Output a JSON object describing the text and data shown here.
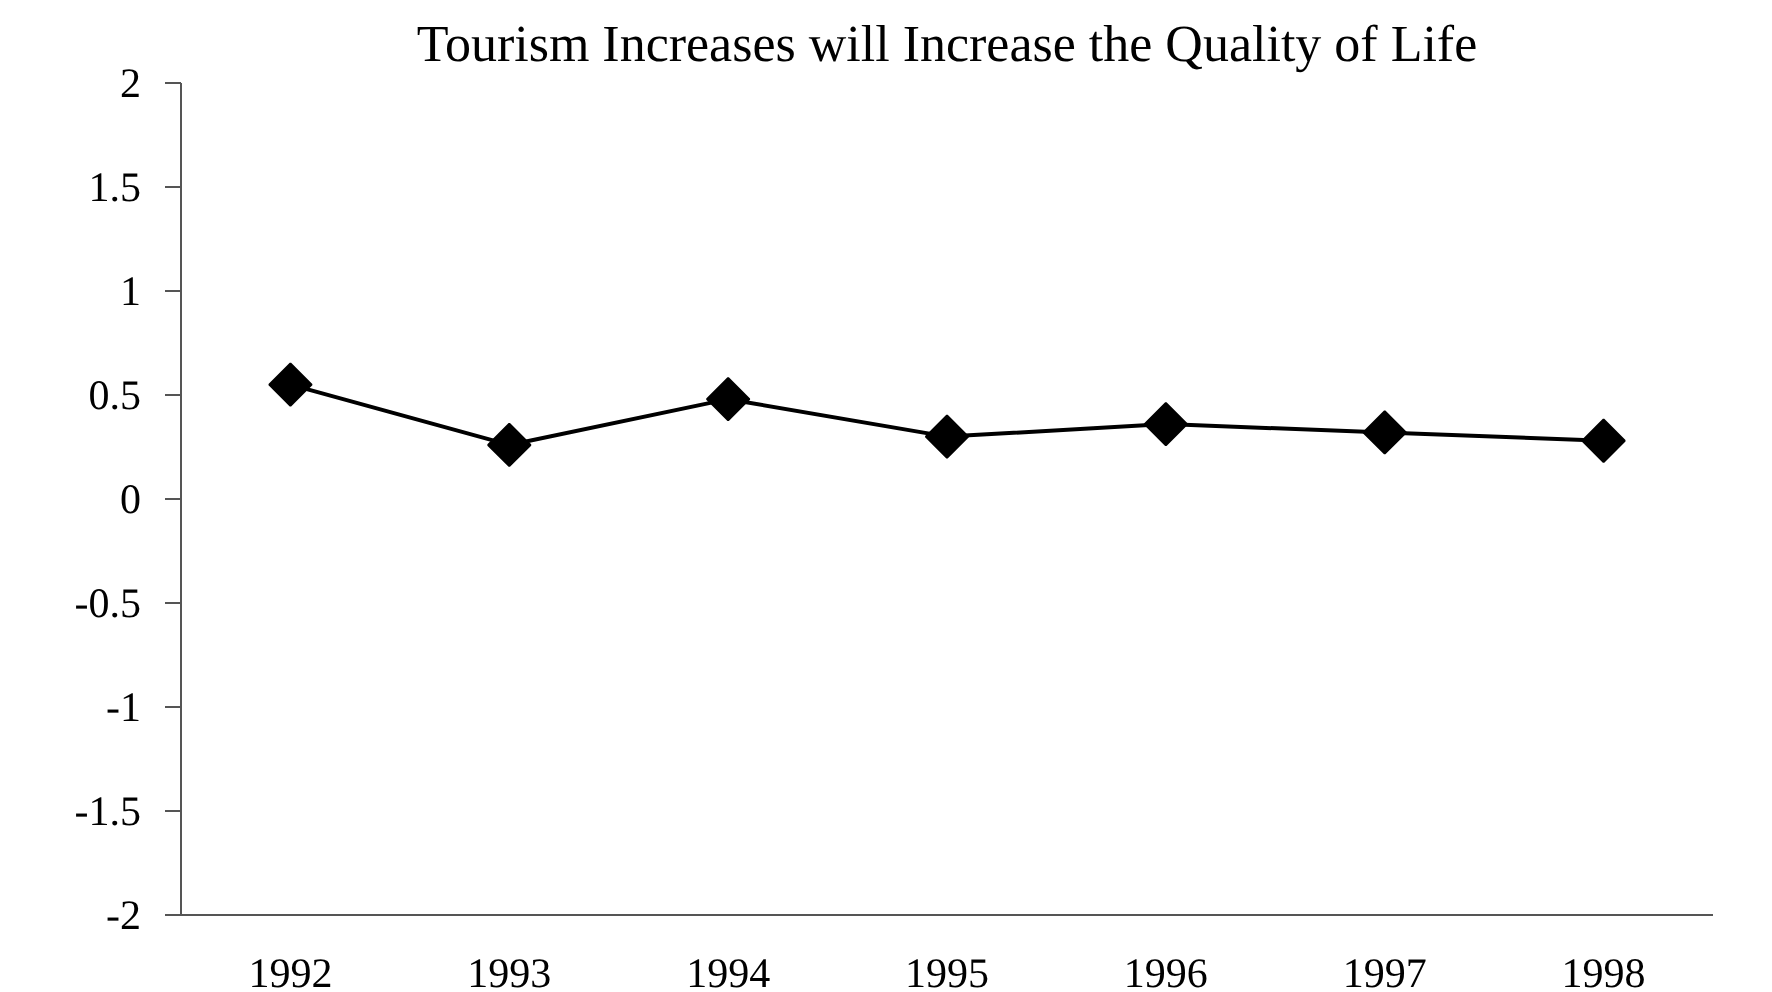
{
  "chart_data": {
    "type": "line",
    "title": "Tourism Increases will Increase the Quality of Life",
    "categories": [
      "1992",
      "1993",
      "1994",
      "1995",
      "1996",
      "1997",
      "1998"
    ],
    "series": [
      {
        "color": "#000000",
        "values": [
          0.55,
          0.26,
          0.48,
          0.3,
          0.36,
          0.32,
          0.28
        ]
      }
    ],
    "ylim": [
      -2,
      2
    ],
    "yticks": [
      2,
      1.5,
      1,
      0.5,
      0,
      -0.5,
      -1,
      -1.5,
      -2
    ],
    "marker": "diamond",
    "line_style": "solid"
  }
}
